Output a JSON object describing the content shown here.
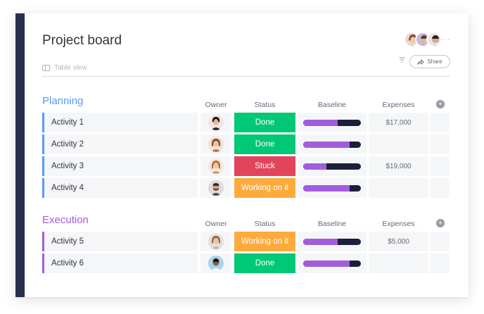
{
  "board": {
    "title": "Project board",
    "view_label": "Table view",
    "share_label": "Share",
    "more_label": "···"
  },
  "columns": {
    "owner": "Owner",
    "status": "Status",
    "baseline": "Baseline",
    "expenses": "Expenses",
    "add": "+"
  },
  "colors": {
    "done": "#00c875",
    "stuck": "#e2445c",
    "working": "#fdab3d",
    "planning": "#579bfc",
    "execution": "#a25ddc",
    "baseline_fill": "#a25ddc",
    "baseline_track": "#1c1f3b"
  },
  "groups": [
    {
      "title": "Planning",
      "color": "#579bfc",
      "rows": [
        {
          "name": "Activity 1",
          "status": "Done",
          "status_color": "#00c875",
          "baseline": 0.6,
          "expenses": "$17,000"
        },
        {
          "name": "Activity 2",
          "status": "Done",
          "status_color": "#00c875",
          "baseline": 0.81,
          "expenses": ""
        },
        {
          "name": "Activity 3",
          "status": "Stuck",
          "status_color": "#e2445c",
          "baseline": 0.4,
          "expenses": "$19,000"
        },
        {
          "name": "Activity 4",
          "status": "Working on it",
          "status_color": "#fdab3d",
          "baseline": 0.81,
          "expenses": ""
        }
      ]
    },
    {
      "title": "Execution",
      "color": "#a25ddc",
      "rows": [
        {
          "name": "Activity 5",
          "status": "Working on it",
          "status_color": "#fdab3d",
          "baseline": 0.6,
          "expenses": "$5,000"
        },
        {
          "name": "Activity 6",
          "status": "Done",
          "status_color": "#00c875",
          "baseline": 0.81,
          "expenses": ""
        }
      ]
    }
  ]
}
